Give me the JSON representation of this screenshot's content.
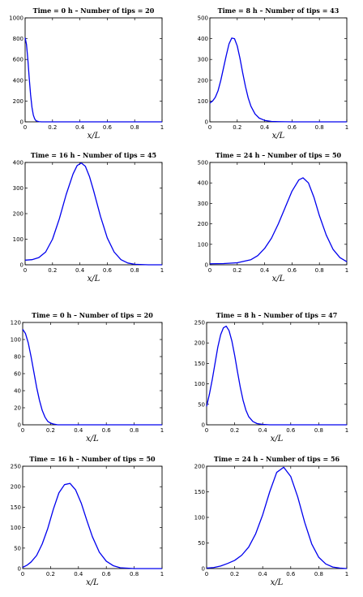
{
  "chart_data": [
    {
      "type": "line",
      "title": "Time = 0 h  –  Number of tips = 20",
      "xlabel": "x/L",
      "xlim": [
        0,
        1
      ],
      "ylim": [
        0,
        1000
      ],
      "xticks": [
        "0",
        "0.2",
        "0.4",
        "0.6",
        "0.8",
        "1"
      ],
      "yticks": [
        "0",
        "200",
        "400",
        "600",
        "800",
        "1000"
      ],
      "series": [
        {
          "x": [
            0,
            0.01,
            0.02,
            0.03,
            0.04,
            0.05,
            0.06,
            0.07,
            0.08,
            0.1,
            0.12,
            0.15,
            0.2,
            0.3,
            0.5,
            0.7,
            1.0
          ],
          "y": [
            810,
            745,
            600,
            420,
            260,
            140,
            65,
            28,
            10,
            2,
            0,
            0,
            0,
            0,
            0,
            0,
            0
          ]
        }
      ]
    },
    {
      "type": "line",
      "title": "Time = 8 h  –  Number of tips = 43",
      "xlabel": "x/L",
      "xlim": [
        0,
        1
      ],
      "ylim": [
        0,
        500
      ],
      "xticks": [
        "0",
        "0.2",
        "0.4",
        "0.6",
        "0.8",
        "1"
      ],
      "yticks": [
        "0",
        "100",
        "200",
        "300",
        "400",
        "500"
      ],
      "series": [
        {
          "x": [
            0,
            0.02,
            0.04,
            0.06,
            0.08,
            0.1,
            0.12,
            0.14,
            0.16,
            0.18,
            0.2,
            0.22,
            0.24,
            0.26,
            0.28,
            0.3,
            0.33,
            0.36,
            0.4,
            0.45,
            0.5,
            0.6,
            0.8,
            1.0
          ],
          "y": [
            90,
            100,
            118,
            150,
            200,
            260,
            320,
            375,
            403,
            400,
            365,
            305,
            235,
            170,
            115,
            75,
            38,
            18,
            7,
            2,
            1,
            0,
            0,
            0
          ]
        }
      ]
    },
    {
      "type": "line",
      "title": "Time = 16 h  –  Number of tips = 45",
      "xlabel": "x/L",
      "xlim": [
        0,
        1
      ],
      "ylim": [
        0,
        400
      ],
      "xticks": [
        "0",
        "0.2",
        "0.4",
        "0.6",
        "0.8",
        "1"
      ],
      "yticks": [
        "0",
        "100",
        "200",
        "300",
        "400"
      ],
      "series": [
        {
          "x": [
            0,
            0.05,
            0.1,
            0.15,
            0.2,
            0.25,
            0.3,
            0.35,
            0.38,
            0.41,
            0.44,
            0.47,
            0.5,
            0.55,
            0.6,
            0.65,
            0.7,
            0.75,
            0.8,
            0.9,
            1.0
          ],
          "y": [
            18,
            20,
            28,
            50,
            100,
            180,
            275,
            355,
            388,
            398,
            385,
            345,
            290,
            190,
            105,
            50,
            20,
            7,
            2,
            0,
            0
          ]
        }
      ]
    },
    {
      "type": "line",
      "title": "Time = 24 h  –  Number of tips = 50",
      "xlabel": "x/L",
      "xlim": [
        0,
        1
      ],
      "ylim": [
        0,
        500
      ],
      "xticks": [
        "0",
        "0.2",
        "0.4",
        "0.6",
        "0.8",
        "1"
      ],
      "yticks": [
        "0",
        "100",
        "200",
        "300",
        "400",
        "500"
      ],
      "series": [
        {
          "x": [
            0,
            0.1,
            0.2,
            0.3,
            0.35,
            0.4,
            0.45,
            0.5,
            0.55,
            0.6,
            0.65,
            0.68,
            0.72,
            0.76,
            0.8,
            0.85,
            0.9,
            0.95,
            1.0
          ],
          "y": [
            5,
            6,
            10,
            25,
            45,
            80,
            130,
            200,
            280,
            360,
            415,
            425,
            400,
            330,
            240,
            145,
            75,
            35,
            15
          ]
        }
      ]
    },
    {
      "type": "line",
      "title": "Time = 0 h  –  Number of tips = 20",
      "xlabel": "x/L",
      "xlim": [
        0,
        1
      ],
      "ylim": [
        0,
        120
      ],
      "xticks": [
        "0",
        "0.2",
        "0.4",
        "0.6",
        "0.8",
        "1"
      ],
      "yticks": [
        "0",
        "20",
        "40",
        "60",
        "80",
        "100",
        "120"
      ],
      "series": [
        {
          "x": [
            0,
            0.02,
            0.04,
            0.06,
            0.08,
            0.1,
            0.12,
            0.14,
            0.16,
            0.18,
            0.2,
            0.22,
            0.25,
            0.3,
            0.4,
            0.6,
            1.0
          ],
          "y": [
            112,
            107,
            96,
            80,
            62,
            44,
            29,
            17,
            9,
            4,
            2,
            1,
            0,
            0,
            0,
            0,
            0
          ]
        }
      ]
    },
    {
      "type": "line",
      "title": "Time = 8 h  –  Number of tips = 47",
      "xlabel": "x/L",
      "xlim": [
        0,
        1
      ],
      "ylim": [
        0,
        250
      ],
      "xticks": [
        "0",
        "0.2",
        "0.4",
        "0.6",
        "0.8",
        "1"
      ],
      "yticks": [
        "0",
        "50",
        "100",
        "150",
        "200",
        "250"
      ],
      "series": [
        {
          "x": [
            0,
            0.02,
            0.04,
            0.06,
            0.08,
            0.1,
            0.12,
            0.14,
            0.16,
            0.18,
            0.2,
            0.22,
            0.24,
            0.26,
            0.28,
            0.3,
            0.33,
            0.36,
            0.4,
            0.45,
            0.5,
            0.6,
            0.8,
            1.0
          ],
          "y": [
            45,
            75,
            110,
            150,
            190,
            220,
            237,
            241,
            230,
            205,
            170,
            130,
            92,
            60,
            36,
            20,
            8,
            3,
            1,
            0,
            0,
            0,
            0,
            0
          ]
        }
      ]
    },
    {
      "type": "line",
      "title": "Time = 16 h  –  Number of tips = 50",
      "xlabel": "x/L",
      "xlim": [
        0,
        1
      ],
      "ylim": [
        0,
        250
      ],
      "xticks": [
        "0",
        "0.2",
        "0.4",
        "0.6",
        "0.8",
        "1"
      ],
      "yticks": [
        "0",
        "50",
        "100",
        "150",
        "200",
        "250"
      ],
      "series": [
        {
          "x": [
            0,
            0.03,
            0.06,
            0.1,
            0.14,
            0.18,
            0.22,
            0.26,
            0.3,
            0.34,
            0.38,
            0.42,
            0.46,
            0.5,
            0.55,
            0.6,
            0.65,
            0.7,
            0.8,
            0.9,
            1.0
          ],
          "y": [
            3,
            8,
            16,
            32,
            60,
            98,
            145,
            185,
            205,
            208,
            192,
            160,
            118,
            78,
            40,
            18,
            7,
            2,
            0,
            0,
            0
          ]
        }
      ]
    },
    {
      "type": "line",
      "title": "Time = 24 h  –  Number of tips = 56",
      "xlabel": "x/L",
      "xlim": [
        0,
        1
      ],
      "ylim": [
        0,
        200
      ],
      "xticks": [
        "0",
        "0.2",
        "0.4",
        "0.6",
        "0.8",
        "1"
      ],
      "yticks": [
        "0",
        "50",
        "100",
        "150",
        "200"
      ],
      "series": [
        {
          "x": [
            0,
            0.05,
            0.1,
            0.15,
            0.2,
            0.25,
            0.3,
            0.35,
            0.4,
            0.45,
            0.5,
            0.55,
            0.6,
            0.65,
            0.7,
            0.75,
            0.8,
            0.85,
            0.9,
            0.95,
            1.0
          ],
          "y": [
            1,
            2,
            5,
            10,
            16,
            26,
            42,
            68,
            105,
            150,
            188,
            198,
            180,
            140,
            90,
            48,
            22,
            9,
            3,
            1,
            0
          ]
        }
      ]
    }
  ],
  "colors": {
    "curve": "#0000ee",
    "axis": "#000000",
    "background": "#ffffff"
  }
}
